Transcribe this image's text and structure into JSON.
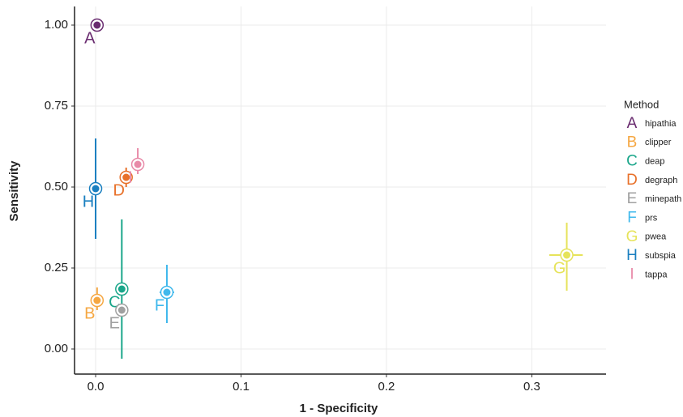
{
  "chart_data": {
    "type": "scatter",
    "x_label": "1 - Specificity",
    "y_label": "Sensitivity",
    "legend_title": "Method",
    "legend_position": "right",
    "grid": true,
    "xlim": [
      -0.0145,
      0.351
    ],
    "xticks": [
      {
        "value": 0,
        "label": "0.0"
      },
      0.1,
      0.2,
      0.3
    ],
    "ylim": [
      -0.0775,
      1.0575
    ],
    "yticks": [
      {
        "value": 0,
        "label": "0.00"
      },
      0.25,
      {
        "value": 0.5,
        "label": "0.50"
      },
      0.75,
      {
        "value": 1,
        "label": "1.00"
      }
    ],
    "series": [
      {
        "name": "hipathia",
        "letter": "A",
        "color": "#6a2c70",
        "x": 0.001,
        "y": 1.0,
        "x_low": null,
        "x_high": null,
        "y_low": null,
        "y_high": null
      },
      {
        "name": "clipper",
        "letter": "B",
        "color": "#f5a742",
        "x": 0.001,
        "y": 0.15,
        "x_low": null,
        "x_high": null,
        "y_low": 0.12,
        "y_high": 0.19
      },
      {
        "name": "deap",
        "letter": "C",
        "color": "#1aa68a",
        "x": 0.018,
        "y": 0.185,
        "x_low": null,
        "x_high": null,
        "y_low": -0.03,
        "y_high": 0.4
      },
      {
        "name": "degraph",
        "letter": "D",
        "color": "#e8712a",
        "x": 0.021,
        "y": 0.53,
        "x_low": null,
        "x_high": null,
        "y_low": 0.5,
        "y_high": 0.56
      },
      {
        "name": "minepath",
        "letter": "E",
        "color": "#a0a0a0",
        "x": 0.018,
        "y": 0.12,
        "x_low": null,
        "x_high": null,
        "y_low": null,
        "y_high": null
      },
      {
        "name": "prs",
        "letter": "F",
        "color": "#3fb8ec",
        "x": 0.049,
        "y": 0.175,
        "x_low": 0.044,
        "x_high": 0.054,
        "y_low": 0.08,
        "y_high": 0.26
      },
      {
        "name": "pwea",
        "letter": "G",
        "color": "#e6e35a",
        "x": 0.324,
        "y": 0.29,
        "x_low": 0.312,
        "x_high": 0.335,
        "y_low": 0.18,
        "y_high": 0.39
      },
      {
        "name": "subspia",
        "letter": "H",
        "color": "#1a7fc0",
        "x": 0.0,
        "y": 0.495,
        "x_low": null,
        "x_high": null,
        "y_low": 0.34,
        "y_high": 0.65
      },
      {
        "name": "tappa",
        "letter": "I",
        "color": "#e88aa8",
        "x": 0.029,
        "y": 0.57,
        "x_low": null,
        "x_high": null,
        "y_low": 0.54,
        "y_high": 0.62
      }
    ]
  }
}
